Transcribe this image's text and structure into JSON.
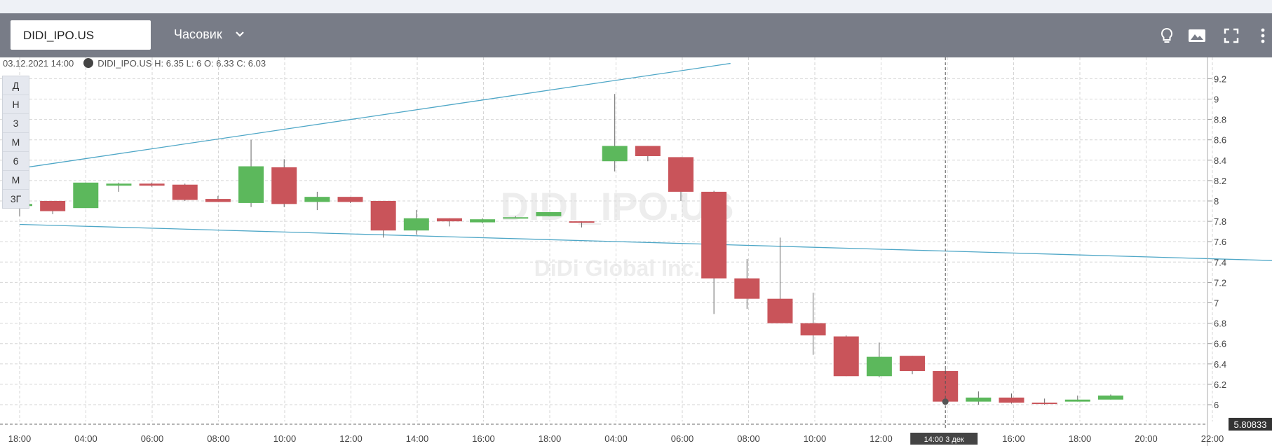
{
  "header": {
    "symbol": "DIDI_IPO.US",
    "interval": "Часовик",
    "icons": [
      "chevron-down-icon",
      "lightbulb-icon",
      "image-icon",
      "fullscreen-icon",
      "more-vertical-icon"
    ]
  },
  "legend": {
    "datetime": "03.12.2021 14:00",
    "ohlc": "DIDI_IPO.US  H: 6.35 L: 6 O: 6.33 C: 6.03"
  },
  "periods": [
    "Д",
    "Н",
    "3",
    "М",
    "6",
    "М",
    "3Г"
  ],
  "watermark": {
    "symbol": "DIDI_IPO.US",
    "name": "DiDi Global Inc."
  },
  "crosshair": {
    "time_label": "14:00  3 дек",
    "price_label": "5.80833"
  },
  "colors": {
    "up": "#5cb85c",
    "down": "#c9545a",
    "trendline": "#4fa7c7",
    "header": "#787c87"
  },
  "chart_data": {
    "type": "candlestick",
    "ylim": [
      5.8,
      9.3
    ],
    "y_ticks": [
      "9.2",
      "9",
      "8.8",
      "8.6",
      "8.4",
      "8.2",
      "8",
      "7.8",
      "7.6",
      "7.4",
      "7.2",
      "7",
      "6.8",
      "6.6",
      "6.4",
      "6.2",
      "6"
    ],
    "x_ticks": [
      "18:00",
      "04:00",
      "06:00",
      "08:00",
      "10:00",
      "12:00",
      "14:00",
      "16:00",
      "18:00",
      "04:00",
      "06:00",
      "08:00",
      "10:00",
      "12:00",
      "14:00",
      "16:00",
      "18:00",
      "20:00",
      "22:00"
    ],
    "candles": [
      {
        "o": 7.95,
        "h": 7.98,
        "l": 7.85,
        "c": 7.97
      },
      {
        "o": 8.0,
        "h": 8.0,
        "l": 7.87,
        "c": 7.9
      },
      {
        "o": 7.93,
        "h": 8.18,
        "l": 7.93,
        "c": 8.18
      },
      {
        "o": 8.15,
        "h": 8.18,
        "l": 8.09,
        "c": 8.17
      },
      {
        "o": 8.17,
        "h": 8.18,
        "l": 8.14,
        "c": 8.15
      },
      {
        "o": 8.16,
        "h": 8.17,
        "l": 8.0,
        "c": 8.01
      },
      {
        "o": 8.02,
        "h": 8.05,
        "l": 7.99,
        "c": 7.99
      },
      {
        "o": 7.98,
        "h": 8.6,
        "l": 7.94,
        "c": 8.34
      },
      {
        "o": 8.33,
        "h": 8.41,
        "l": 7.94,
        "c": 7.97
      },
      {
        "o": 7.99,
        "h": 8.09,
        "l": 7.91,
        "c": 8.04
      },
      {
        "o": 8.04,
        "h": 8.04,
        "l": 7.98,
        "c": 7.99
      },
      {
        "o": 8.0,
        "h": 8.0,
        "l": 7.64,
        "c": 7.71
      },
      {
        "o": 7.71,
        "h": 7.91,
        "l": 7.67,
        "c": 7.83
      },
      {
        "o": 7.83,
        "h": 7.83,
        "l": 7.75,
        "c": 7.8
      },
      {
        "o": 7.79,
        "h": 7.83,
        "l": 7.78,
        "c": 7.82
      },
      {
        "o": 7.84,
        "h": 7.85,
        "l": 7.83,
        "c": 7.84
      },
      {
        "o": 7.85,
        "h": 7.89,
        "l": 7.85,
        "c": 7.89
      },
      {
        "o": 7.8,
        "h": 7.8,
        "l": 7.74,
        "c": 7.79
      },
      {
        "o": 8.39,
        "h": 9.05,
        "l": 8.29,
        "c": 8.54
      },
      {
        "o": 8.54,
        "h": 8.54,
        "l": 8.39,
        "c": 8.44
      },
      {
        "o": 8.43,
        "h": 8.43,
        "l": 8.0,
        "c": 8.09
      },
      {
        "o": 8.09,
        "h": 8.1,
        "l": 6.89,
        "c": 7.24
      },
      {
        "o": 7.24,
        "h": 7.43,
        "l": 6.94,
        "c": 7.04
      },
      {
        "o": 7.04,
        "h": 7.64,
        "l": 6.8,
        "c": 6.8
      },
      {
        "o": 6.8,
        "h": 7.1,
        "l": 6.49,
        "c": 6.68
      },
      {
        "o": 6.67,
        "h": 6.68,
        "l": 6.28,
        "c": 6.28
      },
      {
        "o": 6.28,
        "h": 6.61,
        "l": 6.27,
        "c": 6.47
      },
      {
        "o": 6.48,
        "h": 6.48,
        "l": 6.3,
        "c": 6.33
      },
      {
        "o": 6.33,
        "h": 6.35,
        "l": 6.0,
        "c": 6.03
      },
      {
        "o": 6.03,
        "h": 6.13,
        "l": 6.0,
        "c": 6.07
      },
      {
        "o": 6.07,
        "h": 6.11,
        "l": 6.01,
        "c": 6.02
      },
      {
        "o": 6.02,
        "h": 6.06,
        "l": 6.0,
        "c": 6.01
      },
      {
        "o": 6.03,
        "h": 6.09,
        "l": 6.03,
        "c": 6.05
      },
      {
        "o": 6.05,
        "h": 6.1,
        "l": 6.05,
        "c": 6.09
      }
    ],
    "trendlines": [
      {
        "from": [
          0,
          8.32
        ],
        "to": [
          21.5,
          9.35
        ]
      },
      {
        "from": [
          0,
          7.77
        ],
        "to": [
          40.6,
          7.39
        ]
      }
    ]
  }
}
